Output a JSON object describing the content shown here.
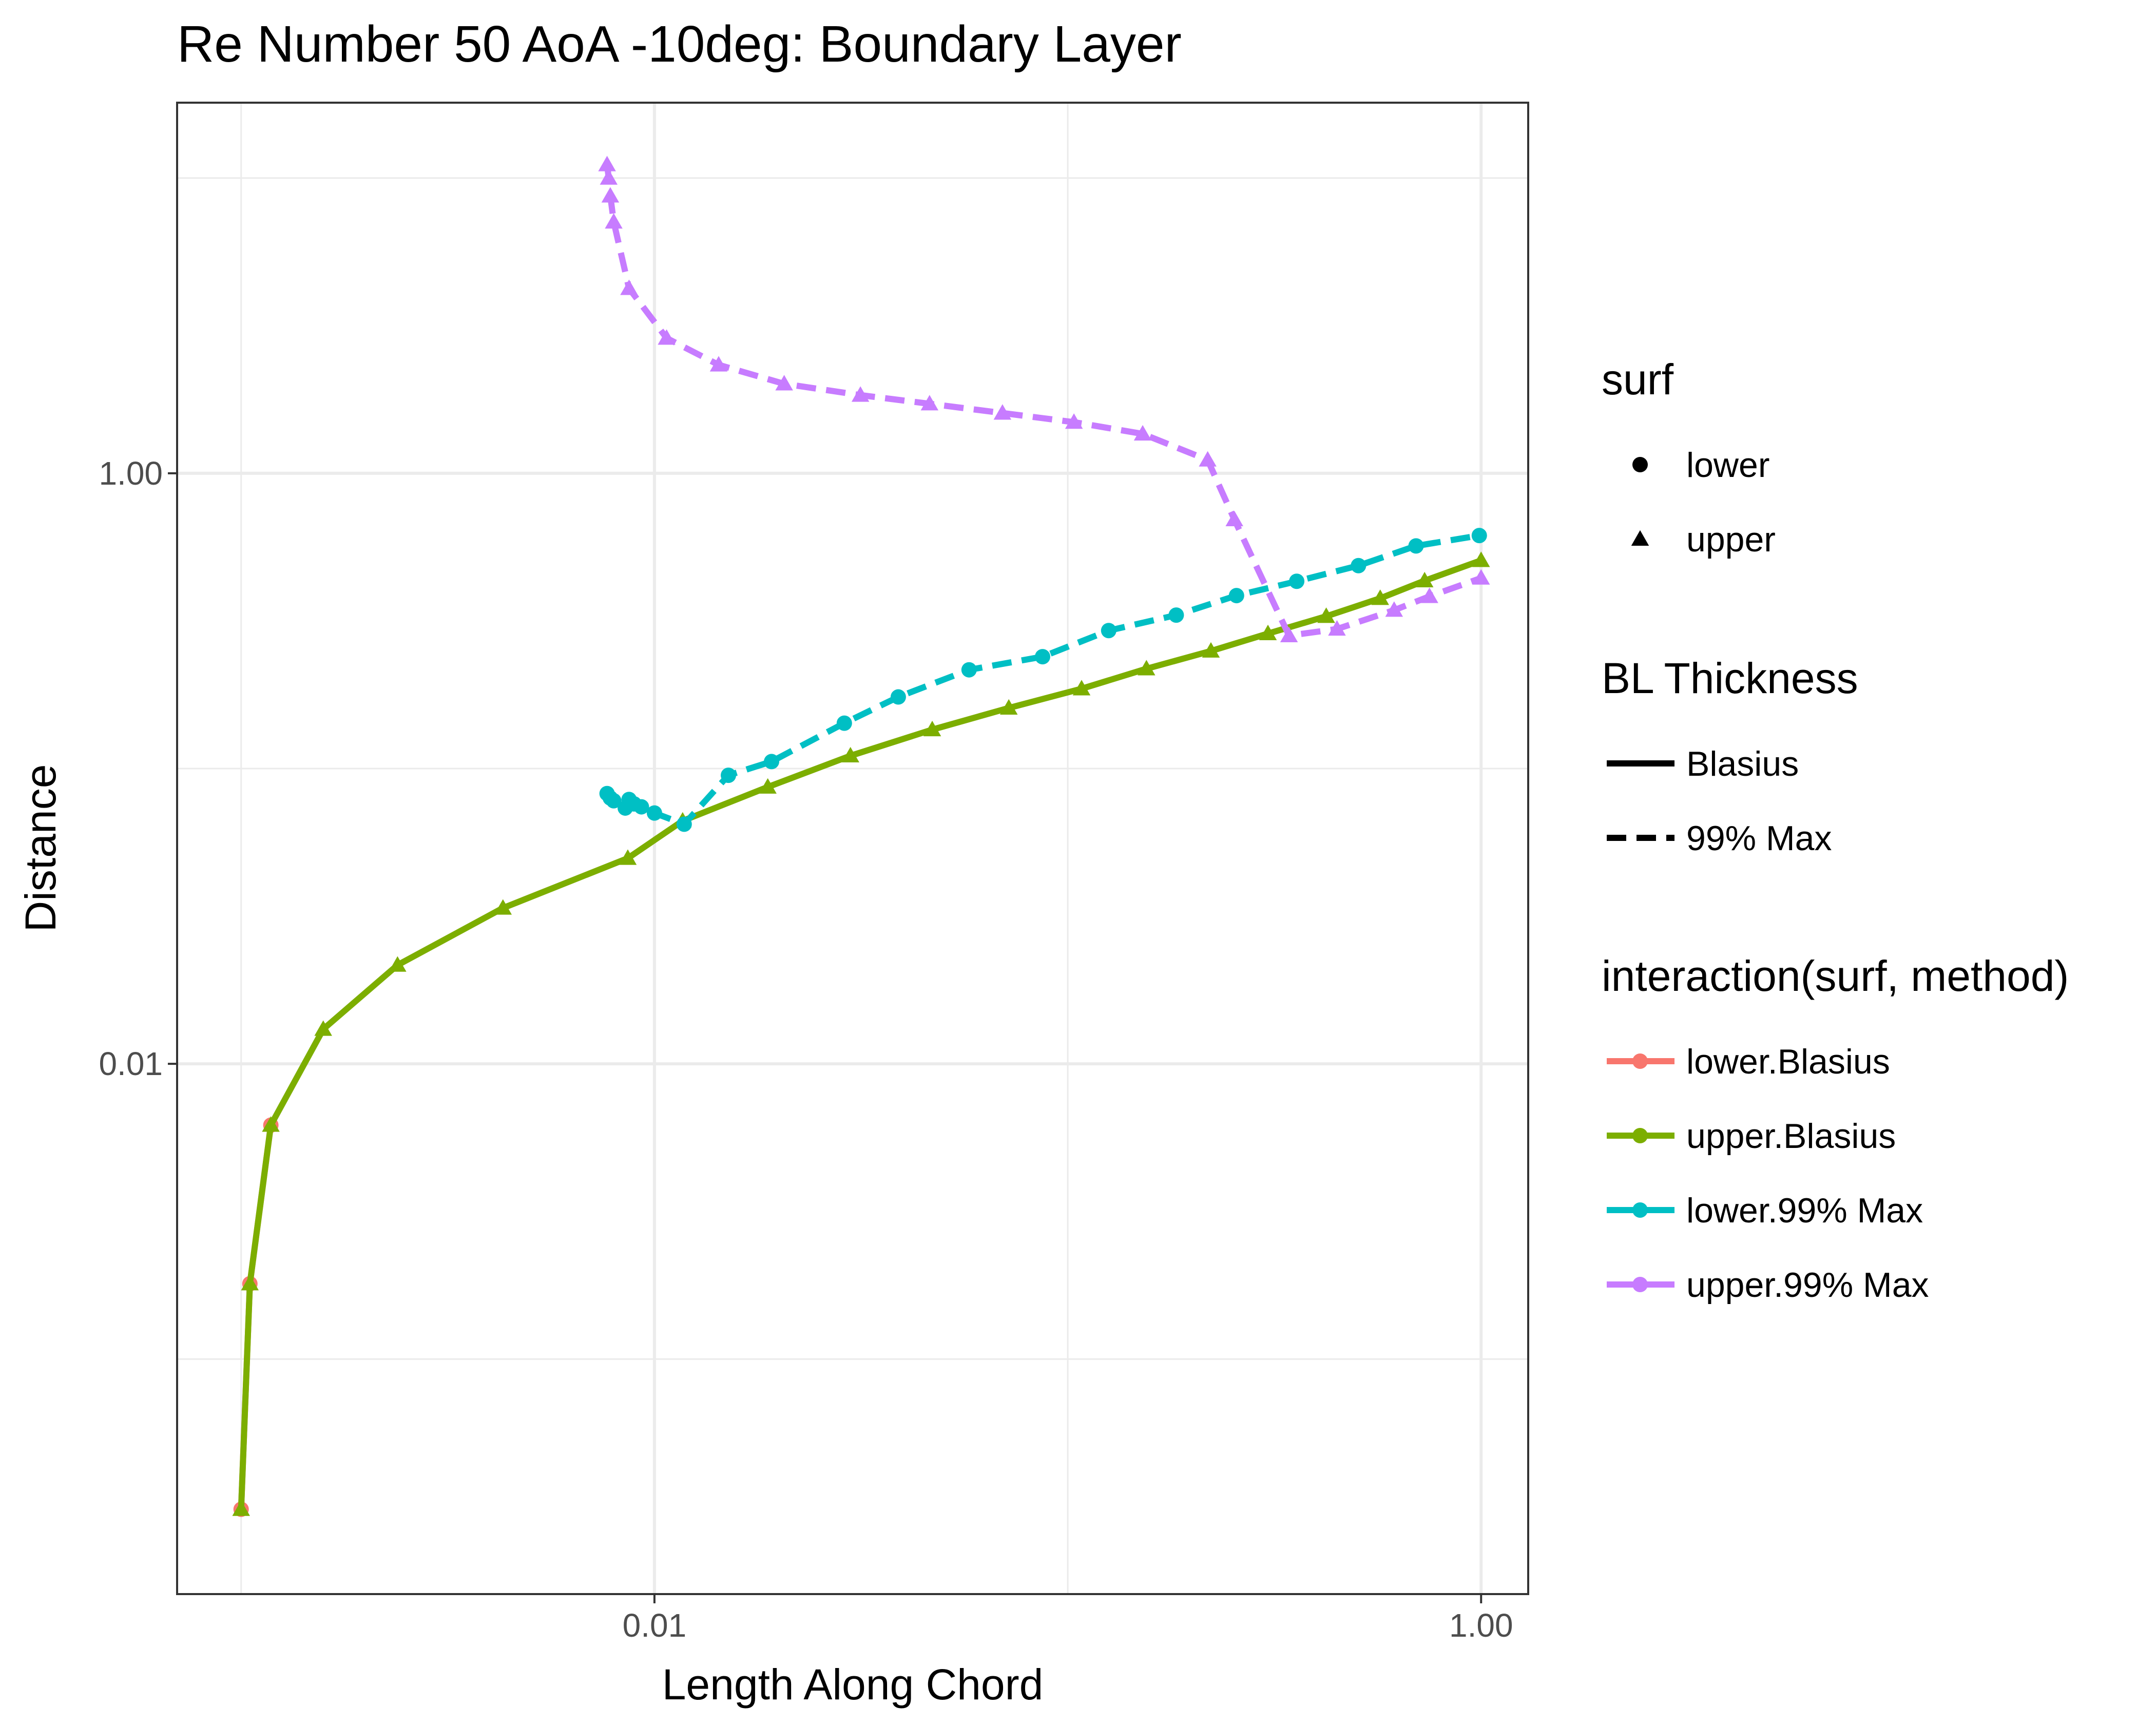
{
  "chart_data": {
    "type": "line",
    "title": "Re Number 50 AoA -10deg: Boundary Layer",
    "xlabel": "Length Along Chord",
    "ylabel": "Distance",
    "x_scale": "log10",
    "y_scale": "log10",
    "xlim": [
      0.0007,
      1.3
    ],
    "ylim": [
      0.00016,
      18
    ],
    "x_ticks": [
      0.01,
      1.0
    ],
    "x_tick_labels": [
      "0.01",
      "1.00"
    ],
    "y_ticks": [
      0.01,
      1.0
    ],
    "y_tick_labels": [
      "0.01",
      "1.00"
    ],
    "grid": true,
    "legend_position": "right",
    "legends": [
      {
        "title": "surf",
        "kind": "shape",
        "items": [
          {
            "label": "lower",
            "shape": "circle"
          },
          {
            "label": "upper",
            "shape": "triangle"
          }
        ]
      },
      {
        "title": "BL Thickness",
        "kind": "linetype",
        "items": [
          {
            "label": "Blasius",
            "linetype": "solid"
          },
          {
            "label": "99% Max",
            "linetype": "dashed"
          }
        ]
      },
      {
        "title": "interaction(surf, method)",
        "kind": "color",
        "items": [
          {
            "label": "lower.Blasius",
            "color": "#F8766D"
          },
          {
            "label": "upper.Blasius",
            "color": "#7CAE00"
          },
          {
            "label": "lower.99% Max",
            "color": "#00BFC4"
          },
          {
            "label": "upper.99% Max",
            "color": "#C77CFF"
          }
        ]
      }
    ],
    "series": [
      {
        "name": "lower.Blasius",
        "color": "#F8766D",
        "linetype": "solid",
        "shape": "circle",
        "x": [
          0.001,
          0.00105,
          0.00118
        ],
        "y": [
          0.00031,
          0.0018,
          0.0062
        ]
      },
      {
        "name": "upper.Blasius",
        "color": "#7CAE00",
        "linetype": "solid",
        "shape": "triangle",
        "x": [
          0.001,
          0.00105,
          0.00118,
          0.00158,
          0.00239,
          0.0043,
          0.00862,
          0.0117,
          0.0188,
          0.0298,
          0.047,
          0.072,
          0.108,
          0.155,
          0.222,
          0.305,
          0.422,
          0.57,
          0.73,
          1.0
        ],
        "y": [
          0.00031,
          0.0018,
          0.0062,
          0.0131,
          0.0216,
          0.0337,
          0.0497,
          0.0665,
          0.0866,
          0.1105,
          0.1355,
          0.1604,
          0.1864,
          0.2178,
          0.2502,
          0.2866,
          0.3279,
          0.3773,
          0.4328,
          0.5071
        ]
      },
      {
        "name": "lower.99% Max",
        "color": "#00BFC4",
        "linetype": "dashed",
        "shape": "circle",
        "x": [
          0.00768,
          0.00782,
          0.00797,
          0.0085,
          0.00868,
          0.00893,
          0.0093,
          0.01,
          0.0118,
          0.0151,
          0.0192,
          0.0288,
          0.0389,
          0.0577,
          0.0869,
          0.1256,
          0.183,
          0.256,
          0.358,
          0.505,
          0.696,
          0.99
        ],
        "y": [
          0.0823,
          0.0795,
          0.0778,
          0.0735,
          0.0786,
          0.0759,
          0.0742,
          0.0707,
          0.0648,
          0.0949,
          0.1056,
          0.1425,
          0.1748,
          0.216,
          0.2393,
          0.2933,
          0.331,
          0.3854,
          0.4308,
          0.4868,
          0.5676,
          0.6155
        ]
      },
      {
        "name": "upper.99% Max",
        "color": "#C77CFF",
        "linetype": "dashed",
        "shape": "triangle",
        "x": [
          0.00768,
          0.00775,
          0.00782,
          0.00797,
          0.00868,
          0.0107,
          0.0143,
          0.0206,
          0.0315,
          0.0463,
          0.0695,
          0.1035,
          0.1518,
          0.218,
          0.253,
          0.343,
          0.448,
          0.616,
          0.75,
          1.0
        ],
        "y": [
          11.1,
          10.0,
          8.7,
          7.1,
          4.23,
          2.87,
          2.33,
          2.01,
          1.84,
          1.72,
          1.6,
          1.49,
          1.36,
          1.11,
          0.697,
          0.282,
          0.297,
          0.344,
          0.383,
          0.442
        ]
      }
    ]
  }
}
